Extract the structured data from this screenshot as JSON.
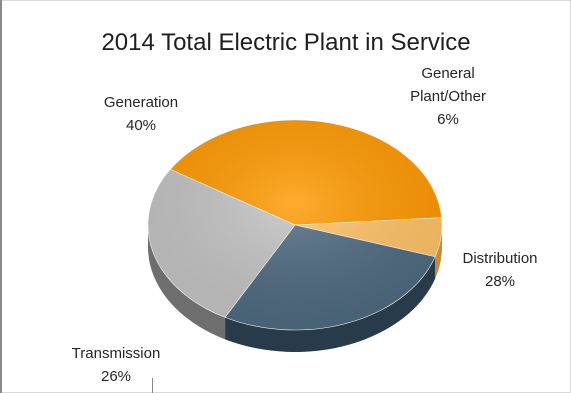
{
  "chart_data": {
    "type": "pie",
    "title": "2014 Total Electric Plant in Service",
    "three_d": true,
    "legend": "none",
    "slices": [
      {
        "name": "Generation",
        "value": 40,
        "label_line1": "Generation",
        "label_line2": "40%",
        "color": "#FF9900",
        "side_color": "#B86A00"
      },
      {
        "name": "General Plant/Other",
        "value": 6,
        "label_line1": "General",
        "label_line1b": "Plant/Other",
        "label_line2": "6%",
        "color": "#FFC266",
        "side_color": "#C98C30"
      },
      {
        "name": "Distribution",
        "value": 28,
        "label_line1": "Distribution",
        "label_line2": "28%",
        "color": "#4E6A80",
        "side_color": "#283B4A"
      },
      {
        "name": "Transmission",
        "value": 26,
        "label_line1": "Transmission",
        "label_line2": "26%",
        "color": "#C3C3C3",
        "side_color": "#6E6E6E"
      }
    ]
  }
}
